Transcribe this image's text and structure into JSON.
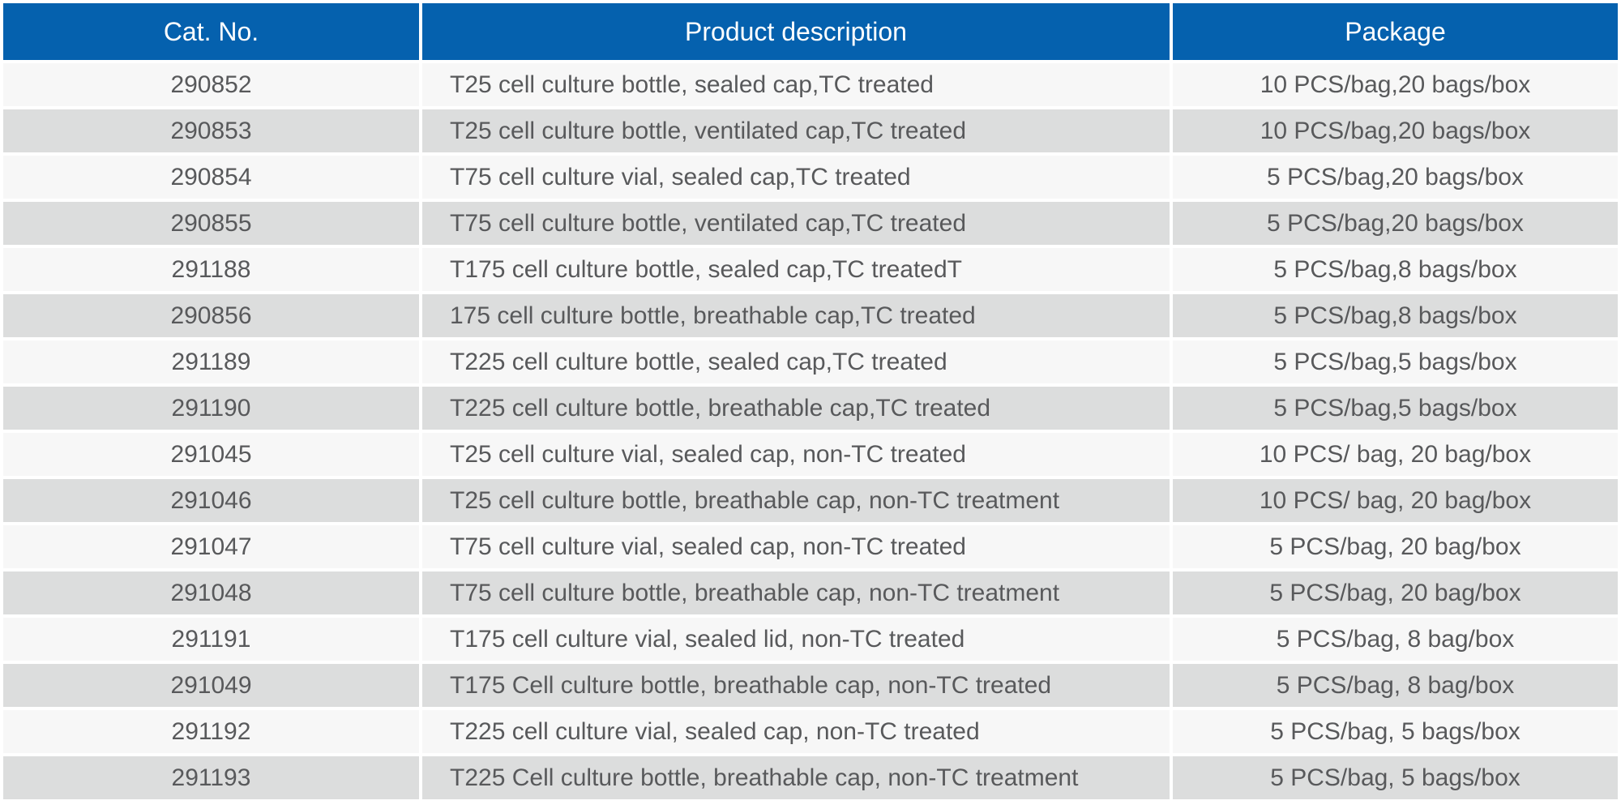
{
  "table": {
    "columns": [
      {
        "key": "cat_no",
        "label": "Cat. No."
      },
      {
        "key": "description",
        "label": "Product description"
      },
      {
        "key": "package",
        "label": "Package"
      }
    ],
    "rows": [
      [
        "290852",
        "T25 cell culture bottle, sealed cap,TC treated",
        "10 PCS/bag,20 bags/box"
      ],
      [
        "290853",
        "T25 cell culture bottle, ventilated cap,TC treated",
        "10 PCS/bag,20 bags/box"
      ],
      [
        "290854",
        "T75 cell culture vial, sealed cap,TC treated",
        "5 PCS/bag,20 bags/box"
      ],
      [
        "290855",
        "T75 cell culture bottle, ventilated cap,TC treated",
        "5 PCS/bag,20 bags/box"
      ],
      [
        "291188",
        "T175 cell culture bottle, sealed cap,TC treatedT",
        "5 PCS/bag,8 bags/box"
      ],
      [
        "290856",
        "175 cell culture bottle, breathable cap,TC treated",
        "5 PCS/bag,8 bags/box"
      ],
      [
        "291189",
        "T225 cell culture bottle, sealed cap,TC treated",
        "5 PCS/bag,5 bags/box"
      ],
      [
        "291190",
        "T225 cell culture bottle, breathable cap,TC treated",
        "5 PCS/bag,5 bags/box"
      ],
      [
        "291045",
        "T25 cell culture vial, sealed cap, non-TC treated",
        "10 PCS/ bag, 20 bag/box"
      ],
      [
        "291046",
        "T25 cell culture bottle, breathable cap, non-TC treatment",
        "10 PCS/ bag, 20 bag/box"
      ],
      [
        "291047",
        "T75 cell culture vial, sealed cap, non-TC treated",
        "5 PCS/bag, 20 bag/box"
      ],
      [
        "291048",
        "T75 cell culture bottle, breathable cap, non-TC treatment",
        "5 PCS/bag, 20 bag/box"
      ],
      [
        "291191",
        "T175 cell culture vial, sealed lid, non-TC treated",
        "5 PCS/bag, 8 bag/box"
      ],
      [
        "291049",
        "T175 Cell culture bottle, breathable cap, non-TC treated",
        "5 PCS/bag, 8 bag/box"
      ],
      [
        "291192",
        "T225 cell culture vial, sealed cap, non-TC treated",
        "5 PCS/bag, 5 bags/box"
      ],
      [
        "291193",
        "T225 Cell culture bottle, breathable cap, non-TC treatment",
        "5 PCS/bag, 5 bags/box"
      ]
    ]
  },
  "colors": {
    "header_bg": "#0561ae",
    "header_text": "#ffffff",
    "row_light_bg": "#f7f7f7",
    "row_dark_bg": "#dcdddd",
    "body_text": "#58595b",
    "divider": "#ffffff"
  }
}
